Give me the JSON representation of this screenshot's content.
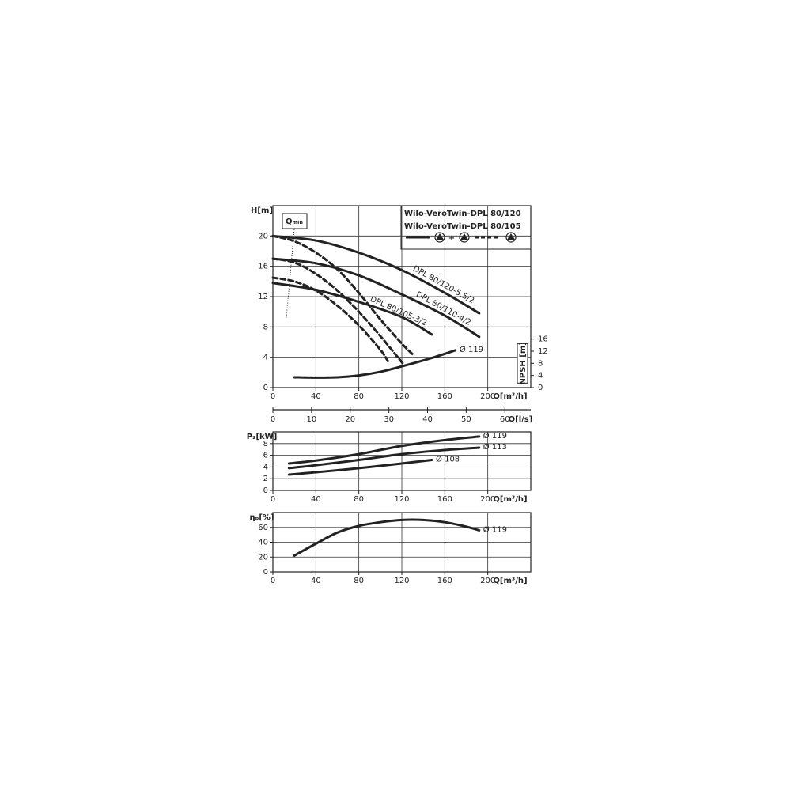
{
  "chart_data": [
    {
      "type": "line",
      "ylabel": "H[m]",
      "xlabel": "Q[m³/h]",
      "xlim": [
        0,
        240
      ],
      "xticks": [
        0,
        40,
        80,
        120,
        160,
        200
      ],
      "ylim": [
        0,
        24
      ],
      "yticks": [
        0,
        4,
        8,
        12,
        16,
        20
      ],
      "grid": true,
      "y2label": "NPSH [m]",
      "y2lim": [
        0,
        60
      ],
      "y2ticks": [
        0,
        4,
        8,
        12,
        16
      ],
      "x2label": "Q[l/s]",
      "x2lim": [
        0,
        66.7
      ],
      "x2ticks": [
        0,
        10,
        20,
        30,
        40,
        50,
        60
      ],
      "legend": [
        "Wilo-VeroTwin-DPL 80/120",
        "Wilo-VeroTwin-DPL 80/105"
      ],
      "legend_join": "+",
      "annotation": "Qₘᵢₙ",
      "series": [
        {
          "name": "DPL 80/120-5.5/2",
          "style": "solid",
          "color": "#222",
          "x": [
            0,
            40,
            80,
            120,
            160,
            192
          ],
          "values": [
            20,
            19.4,
            17.8,
            15.5,
            12.5,
            9.8
          ]
        },
        {
          "name": "DPL 80/110-4/2",
          "style": "solid",
          "color": "#222",
          "x": [
            0,
            40,
            80,
            120,
            160,
            192
          ],
          "values": [
            17,
            16.4,
            14.8,
            12.3,
            9.5,
            6.7
          ]
        },
        {
          "name": "DPL 80/105-3/2",
          "style": "solid",
          "color": "#222",
          "x": [
            0,
            40,
            80,
            120,
            148
          ],
          "values": [
            13.8,
            12.9,
            11.3,
            9.3,
            7.0
          ]
        },
        {
          "style": "dashed",
          "color": "#222",
          "x": [
            0,
            20,
            40,
            60,
            80,
            100,
            120,
            130
          ],
          "values": [
            20,
            19.3,
            17.8,
            15.6,
            12.5,
            9,
            5.8,
            4.4
          ]
        },
        {
          "style": "dashed",
          "color": "#222",
          "x": [
            0,
            20,
            40,
            60,
            80,
            100,
            122
          ],
          "values": [
            17,
            16.5,
            15,
            12.8,
            10,
            6.8,
            3
          ]
        },
        {
          "style": "dashed",
          "color": "#222",
          "x": [
            0,
            20,
            40,
            60,
            80,
            100,
            107
          ],
          "values": [
            14.5,
            14,
            12.8,
            10.8,
            8.2,
            5,
            3.5
          ]
        },
        {
          "name": "Ø 119",
          "style": "solid",
          "color": "#222",
          "axis": "y2",
          "x": [
            20,
            40,
            60,
            80,
            100,
            120,
            150,
            170
          ],
          "values": [
            3.4,
            3.3,
            3.4,
            4.0,
            5.2,
            7.0,
            10.0,
            12.3
          ]
        }
      ]
    },
    {
      "type": "line",
      "ylabel": "P₂[kW]",
      "xlabel": "Q[m³/h]",
      "xlim": [
        0,
        240
      ],
      "xticks": [
        0,
        40,
        80,
        120,
        160,
        200
      ],
      "ylim": [
        0,
        10
      ],
      "yticks": [
        0,
        2,
        4,
        6,
        8
      ],
      "grid": true,
      "series": [
        {
          "name": "Ø 119",
          "style": "solid",
          "color": "#222",
          "x": [
            15,
            40,
            80,
            120,
            160,
            192
          ],
          "values": [
            4.6,
            5.1,
            6.2,
            7.6,
            8.6,
            9.2
          ]
        },
        {
          "name": "Ø 113",
          "style": "solid",
          "color": "#222",
          "x": [
            15,
            40,
            80,
            120,
            160,
            192
          ],
          "values": [
            3.8,
            4.3,
            5.2,
            6.2,
            6.9,
            7.3
          ]
        },
        {
          "name": "Ø 108",
          "style": "solid",
          "color": "#222",
          "x": [
            15,
            40,
            80,
            120,
            148
          ],
          "values": [
            2.7,
            3.1,
            3.8,
            4.6,
            5.2
          ]
        }
      ]
    },
    {
      "type": "line",
      "ylabel": "ηₚ[%]",
      "xlabel": "Q[m³/h]",
      "xlim": [
        0,
        240
      ],
      "xticks": [
        0,
        40,
        80,
        120,
        160,
        200
      ],
      "ylim": [
        0,
        80
      ],
      "yticks": [
        0,
        20,
        40,
        60
      ],
      "grid": true,
      "series": [
        {
          "name": "Ø 119",
          "style": "solid",
          "color": "#222",
          "x": [
            20,
            40,
            60,
            80,
            100,
            120,
            140,
            160,
            180,
            192
          ],
          "values": [
            22,
            38,
            53,
            62,
            67,
            70,
            70,
            67,
            61,
            56
          ]
        }
      ]
    }
  ]
}
